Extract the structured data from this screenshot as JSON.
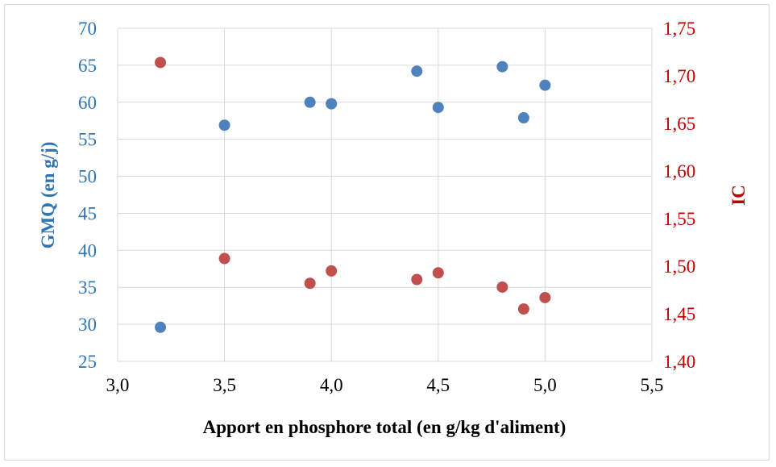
{
  "chart_data": {
    "type": "scatter",
    "xlabel": "Apport en phosphore total (en g/kg d'aliment)",
    "ylabel_left": "GMQ (en g/j)",
    "ylabel_right": "IC",
    "xlim": [
      3.0,
      5.5
    ],
    "ylim_left": [
      25,
      70
    ],
    "ylim_right": [
      1.4,
      1.75
    ],
    "x_ticks": [
      "3,0",
      "3,5",
      "4,0",
      "4,5",
      "5,0",
      "5,5"
    ],
    "y_left_ticks": [
      "25",
      "30",
      "35",
      "40",
      "45",
      "50",
      "55",
      "60",
      "65",
      "70"
    ],
    "y_right_ticks": [
      "1,40",
      "1,45",
      "1,50",
      "1,55",
      "1,60",
      "1,65",
      "1,70",
      "1,75"
    ],
    "grid": true,
    "legend": "none",
    "colors": {
      "left_axis": "#2e75b6",
      "right_axis": "#c00000",
      "series1": "#4f81bd",
      "series2": "#c0504d",
      "grid": "#d9d9d9"
    },
    "series": [
      {
        "axis": "left",
        "points": [
          {
            "x": 3.2,
            "y": 29.6
          },
          {
            "x": 3.5,
            "y": 56.9
          },
          {
            "x": 3.9,
            "y": 60.0
          },
          {
            "x": 4.0,
            "y": 59.8
          },
          {
            "x": 4.4,
            "y": 64.2
          },
          {
            "x": 4.5,
            "y": 59.3
          },
          {
            "x": 4.8,
            "y": 64.8
          },
          {
            "x": 4.9,
            "y": 57.9
          },
          {
            "x": 5.0,
            "y": 62.3
          }
        ]
      },
      {
        "axis": "right",
        "points": [
          {
            "x": 3.2,
            "y": 1.714
          },
          {
            "x": 3.5,
            "y": 1.508
          },
          {
            "x": 3.9,
            "y": 1.482
          },
          {
            "x": 4.0,
            "y": 1.495
          },
          {
            "x": 4.4,
            "y": 1.486
          },
          {
            "x": 4.5,
            "y": 1.493
          },
          {
            "x": 4.8,
            "y": 1.478
          },
          {
            "x": 4.9,
            "y": 1.455
          },
          {
            "x": 5.0,
            "y": 1.467
          }
        ]
      }
    ]
  }
}
